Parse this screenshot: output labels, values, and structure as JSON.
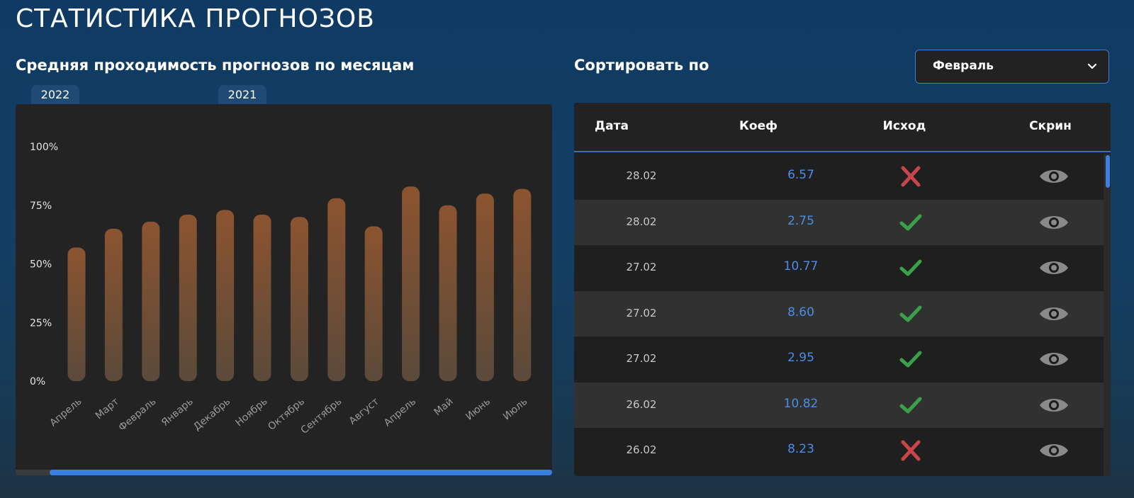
{
  "page": {
    "title": "СТАТИСТИКА ПРОГНОЗОВ"
  },
  "chart_section": {
    "title": "Средняя проходимость прогнозов по месяцам",
    "year_tabs": [
      "2022",
      "2021"
    ]
  },
  "chart_data": {
    "type": "bar",
    "categories": [
      "Апрель",
      "Март",
      "Февраль",
      "Январь",
      "Декабрь",
      "Ноябрь",
      "Октябрь",
      "Сентябрь",
      "Август",
      "Апрель",
      "Май",
      "Июнь",
      "Июль"
    ],
    "values": [
      57,
      65,
      68,
      71,
      73,
      71,
      70,
      78,
      66,
      83,
      75,
      80,
      82
    ],
    "ylim": [
      0,
      100
    ],
    "yticks": [
      "0%",
      "25%",
      "50%",
      "75%",
      "100%"
    ],
    "title": "",
    "xlabel": "",
    "ylabel": "",
    "grid": false,
    "bar_gradient": [
      "#8c5430",
      "#5b4a3a"
    ]
  },
  "sort_section": {
    "label": "Сортировать по",
    "selected": "Февраль",
    "accent_color": "#3d7fd4"
  },
  "table": {
    "headers": {
      "date": "Дата",
      "coef": "Коеф",
      "outcome": "Исход",
      "screen": "Скрин"
    },
    "rows": [
      {
        "date": "28.02",
        "coef": "6.57",
        "outcome": "loss"
      },
      {
        "date": "28.02",
        "coef": "2.75",
        "outcome": "win"
      },
      {
        "date": "27.02",
        "coef": "10.77",
        "outcome": "win"
      },
      {
        "date": "27.02",
        "coef": "8.60",
        "outcome": "win"
      },
      {
        "date": "27.02",
        "coef": "2.95",
        "outcome": "win"
      },
      {
        "date": "26.02",
        "coef": "10.82",
        "outcome": "win"
      },
      {
        "date": "26.02",
        "coef": "8.23",
        "outcome": "loss"
      }
    ],
    "icons": {
      "win": "check-icon",
      "loss": "cross-icon",
      "screen": "eye-icon"
    },
    "colors": {
      "win": "#3aa14a",
      "loss": "#c9454c",
      "coef": "#4a8ee8",
      "eye": "#8a8a8a"
    }
  }
}
